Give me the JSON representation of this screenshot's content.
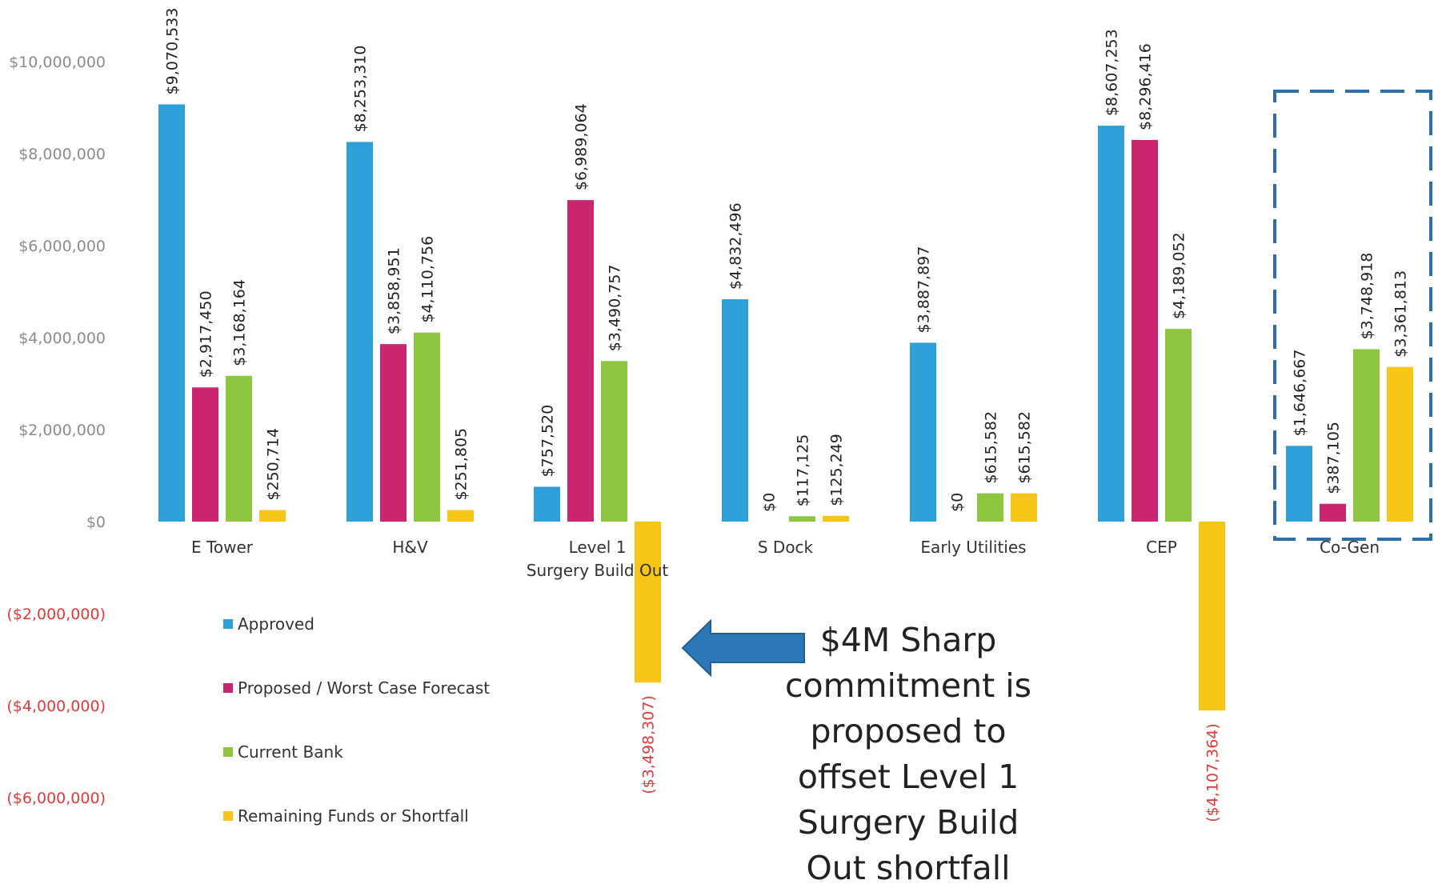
{
  "chart_data": {
    "type": "bar",
    "categories": [
      "E Tower",
      "H&V",
      "Level 1\nSurgery Build Out",
      "S Dock",
      "Early Utilities",
      "CEP",
      "Co-Gen"
    ],
    "series": [
      {
        "name": "Approved",
        "color": "#2e9fd8",
        "values": [
          9070533,
          8253310,
          757520,
          4832496,
          3887897,
          8607253,
          1646667
        ]
      },
      {
        "name": "Proposed / Worst Case Forecast",
        "color": "#c9266e",
        "values": [
          2917450,
          3858951,
          6989064,
          0,
          0,
          8296416,
          387105
        ]
      },
      {
        "name": "Current Bank",
        "color": "#8dc63f",
        "values": [
          3168164,
          4110756,
          3490757,
          117125,
          615582,
          4189052,
          3748918
        ]
      },
      {
        "name": "Remaining Funds or Shortfall",
        "color": "#f6c518",
        "values": [
          250714,
          251805,
          -3498307,
          125249,
          615582,
          -4107364,
          3361813
        ]
      }
    ],
    "data_labels": [
      [
        "$9,070,533",
        "$8,253,310",
        "$757,520",
        "$4,832,496",
        "$3,887,897",
        "$8,607,253",
        "$1,646,667"
      ],
      [
        "$2,917,450",
        "$3,858,951",
        "$6,989,064",
        "$0",
        "$0",
        "$8,296,416",
        "$387,105"
      ],
      [
        "$3,168,164",
        "$4,110,756",
        "$3,490,757",
        "$117,125",
        "$615,582",
        "$4,189,052",
        "$3,748,918"
      ],
      [
        "$250,714",
        "$251,805",
        "($3,498,307)",
        "$125,249",
        "$615,582",
        "($4,107,364)",
        "$3,361,813"
      ]
    ],
    "y_ticks": [
      10000000,
      8000000,
      6000000,
      4000000,
      2000000,
      0,
      -2000000,
      -4000000,
      -6000000
    ],
    "y_tick_labels": [
      "$10,000,000",
      "$8,000,000",
      "$6,000,000",
      "$4,000,000",
      "$2,000,000",
      "$0",
      "($2,000,000)",
      "($4,000,000)",
      "($6,000,000)"
    ],
    "ylim": [
      -6000000,
      10000000
    ],
    "grid": false,
    "legend_position": "bottom-left",
    "highlighted_category": "Co-Gen",
    "title": "",
    "xlabel": "",
    "ylabel": "",
    "colors": {
      "axis_text": "#8c8c8c",
      "negative_text": "#e03a3a",
      "label_text": "#222222",
      "highlight_box": "#2f6fa8",
      "arrow": "#2c78b6"
    }
  },
  "annotation": {
    "lines": [
      "$4M Sharp",
      "commitment is",
      "proposed to",
      "offset Level 1",
      "Surgery Build",
      "Out shortfall"
    ]
  }
}
